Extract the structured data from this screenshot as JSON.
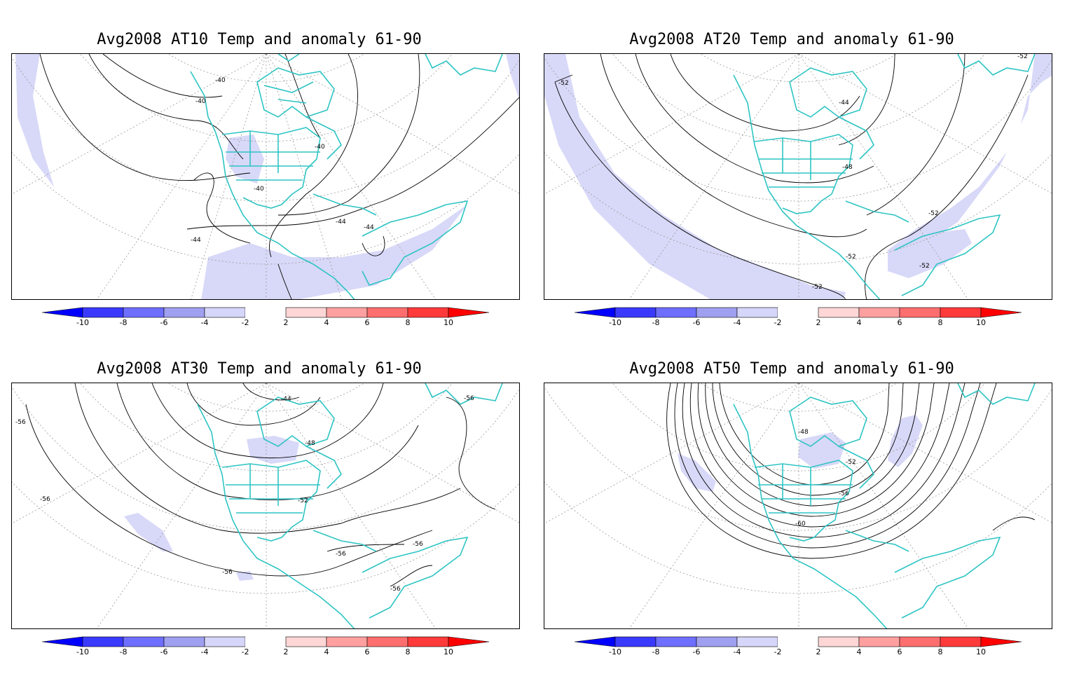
{
  "panels": [
    {
      "id": "at10",
      "title": "Avg2008 AT10 Temp and anomaly 61-90",
      "contour_labels": [
        "-40",
        "-40",
        "-40",
        "-40",
        "-44",
        "-44",
        "-44"
      ]
    },
    {
      "id": "at20",
      "title": "Avg2008 AT20 Temp and anomaly 61-90",
      "contour_labels": [
        "-52",
        "-52",
        "-44",
        "-48",
        "-52",
        "-52",
        "-52",
        "-52"
      ]
    },
    {
      "id": "at30",
      "title": "Avg2008 AT30 Temp and anomaly 61-90",
      "contour_labels": [
        "-44",
        "-48",
        "-52",
        "-56",
        "-56",
        "-56",
        "-56",
        "-56",
        "-56",
        "-56"
      ]
    },
    {
      "id": "at50",
      "title": "Avg2008 AT50 Temp and anomaly 61-90",
      "contour_labels": [
        "-48",
        "-52",
        "-56",
        "-60"
      ]
    }
  ],
  "colorbar": {
    "labels": [
      "-10",
      "-8",
      "-6",
      "-4",
      "-2",
      "2",
      "4",
      "6",
      "8",
      "10"
    ],
    "colors": {
      "neg": [
        "#0000ff",
        "#3a3aff",
        "#6e6eff",
        "#a0a0f0",
        "#d6d6fa"
      ],
      "pos": [
        "#ffd6d6",
        "#ffa0a0",
        "#ff6e6e",
        "#ff3a3a",
        "#ff0000"
      ]
    }
  },
  "style": {
    "coast_color": "#2ec4c4",
    "anomaly_fill": "#d8d8f8"
  }
}
